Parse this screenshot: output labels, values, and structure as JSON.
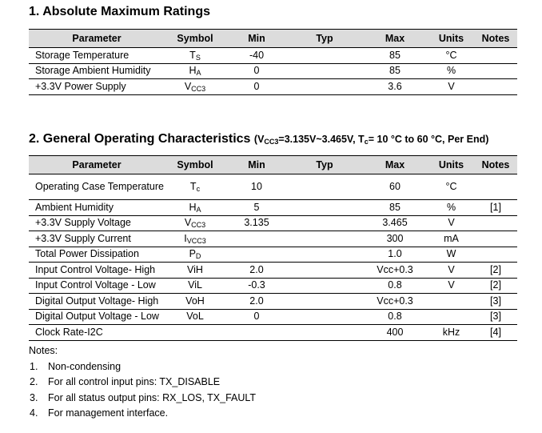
{
  "section1": {
    "title": "1. Absolute Maximum Ratings",
    "headers": [
      "Parameter",
      "Symbol",
      "Min",
      "Typ",
      "Max",
      "Units",
      "Notes"
    ],
    "rows": [
      {
        "param": "Storage Temperature",
        "sym": "T",
        "sub": "S",
        "min": "-40",
        "typ": "",
        "max": "85",
        "units": "°C",
        "notes": ""
      },
      {
        "param": "Storage Ambient Humidity",
        "sym": "H",
        "sub": "A",
        "min": "0",
        "typ": "",
        "max": "85",
        "units": "%",
        "notes": ""
      },
      {
        "param": "+3.3V Power Supply",
        "sym": "V",
        "sub": "CC3",
        "min": "0",
        "typ": "",
        "max": "3.6",
        "units": "V",
        "notes": ""
      }
    ]
  },
  "section2": {
    "title": "2. General Operating Characteristics",
    "conditions": "(V",
    "conditions_sub": "CC3",
    "conditions_mid": "=3.135V~3.465V, T",
    "conditions_sub2": "c",
    "conditions_end": "= 10 °C to 60 °C, Per End)",
    "headers": [
      "Parameter",
      "Symbol",
      "Min",
      "Typ",
      "Max",
      "Units",
      "Notes"
    ],
    "rows": [
      {
        "param": "Operating Case Temperature",
        "sym": "T",
        "sub": "c",
        "min": "10",
        "typ": "",
        "max": "60",
        "units": "°C",
        "notes": "",
        "tall": true
      },
      {
        "param": "Ambient Humidity",
        "sym": "H",
        "sub": "A",
        "min": "5",
        "typ": "",
        "max": "85",
        "units": "%",
        "notes": "[1]"
      },
      {
        "param": "+3.3V Supply Voltage",
        "sym": "V",
        "sub": "CC3",
        "min": "3.135",
        "typ": "",
        "max": "3.465",
        "units": "V",
        "notes": ""
      },
      {
        "param": "+3.3V Supply Current",
        "sym": "I",
        "sub": "VCC3",
        "min": "",
        "typ": "",
        "max": "300",
        "units": "mA",
        "notes": ""
      },
      {
        "param": "Total Power Dissipation",
        "sym": "P",
        "sub": "D",
        "min": "",
        "typ": "",
        "max": "1.0",
        "units": "W",
        "notes": ""
      },
      {
        "param": "Input Control Voltage- High",
        "sym": "ViH",
        "sub": "",
        "min": "2.0",
        "typ": "",
        "max": "Vcc+0.3",
        "units": "V",
        "notes": "[2]"
      },
      {
        "param": "Input Control Voltage - Low",
        "sym": "ViL",
        "sub": "",
        "min": "-0.3",
        "typ": "",
        "max": "0.8",
        "units": "V",
        "notes": "[2]"
      },
      {
        "param": "Digital Output Voltage- High",
        "sym": "VoH",
        "sub": "",
        "min": "2.0",
        "typ": "",
        "max": "Vcc+0.3",
        "units": "",
        "notes": "[3]"
      },
      {
        "param": "Digital Output Voltage - Low",
        "sym": "VoL",
        "sub": "",
        "min": "0",
        "typ": "",
        "max": "0.8",
        "units": "",
        "notes": "[3]"
      },
      {
        "param": "Clock Rate-I2C",
        "sym": "",
        "sub": "",
        "min": "",
        "typ": "",
        "max": "400",
        "units": "kHz",
        "notes": "[4]"
      }
    ]
  },
  "notes": {
    "heading": "Notes:",
    "items": [
      {
        "idx": "1.",
        "text": "Non-condensing"
      },
      {
        "idx": "2.",
        "text": "For all control input pins: TX_DISABLE"
      },
      {
        "idx": "3.",
        "text": "For all status output pins: RX_LOS, TX_FAULT"
      },
      {
        "idx": "4.",
        "text": "For management interface."
      }
    ]
  }
}
